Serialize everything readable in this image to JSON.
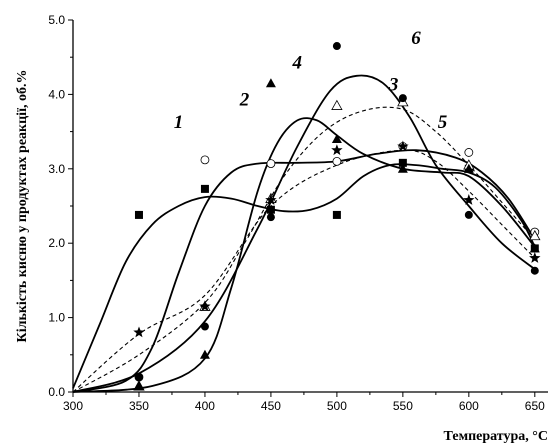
{
  "chart_data": {
    "type": "scatter",
    "title": "",
    "xlabel": "Температура, °С",
    "ylabel": "Кількість кисню у продуктах реакції, об.%",
    "xlim": [
      300,
      660
    ],
    "ylim": [
      0,
      5.0
    ],
    "x_ticks": [
      300,
      350,
      400,
      450,
      500,
      550,
      600,
      650
    ],
    "y_ticks": [
      0.0,
      1.0,
      2.0,
      3.0,
      4.0,
      5.0
    ],
    "x_tick_labels": [
      "300",
      "350",
      "400",
      "450",
      "500",
      "550",
      "600",
      "650"
    ],
    "y_tick_labels": [
      "0.0",
      "1.0",
      "2.0",
      "3.0",
      "4.0",
      "5.0"
    ],
    "grid": false,
    "legend": "none",
    "series": [
      {
        "name": "1",
        "marker": "square-filled",
        "line": "solid",
        "points": [
          [
            300,
            0
          ],
          [
            350,
            2.38
          ],
          [
            400,
            2.73
          ],
          [
            450,
            2.45
          ],
          [
            500,
            2.38
          ],
          [
            550,
            3.08
          ],
          [
            600,
            3.0
          ],
          [
            650,
            1.93
          ]
        ],
        "curve": [
          [
            300,
            0.05
          ],
          [
            320,
            0.9
          ],
          [
            340,
            1.75
          ],
          [
            360,
            2.25
          ],
          [
            380,
            2.5
          ],
          [
            400,
            2.62
          ],
          [
            420,
            2.6
          ],
          [
            440,
            2.5
          ],
          [
            460,
            2.43
          ],
          [
            480,
            2.45
          ],
          [
            500,
            2.6
          ],
          [
            520,
            2.9
          ],
          [
            540,
            3.05
          ],
          [
            560,
            3.05
          ],
          [
            580,
            3.0
          ],
          [
            600,
            2.95
          ],
          [
            620,
            2.75
          ],
          [
            640,
            2.3
          ],
          [
            650,
            1.95
          ]
        ]
      },
      {
        "name": "2",
        "marker": "circle-open",
        "line": "solid",
        "points": [
          [
            300,
            0
          ],
          [
            350,
            0.2
          ],
          [
            400,
            3.12
          ],
          [
            450,
            3.07
          ],
          [
            500,
            3.1
          ],
          [
            550,
            3.3
          ],
          [
            600,
            3.22
          ],
          [
            650,
            2.15
          ]
        ],
        "curve": [
          [
            300,
            0
          ],
          [
            340,
            0.15
          ],
          [
            360,
            0.6
          ],
          [
            380,
            1.6
          ],
          [
            400,
            2.5
          ],
          [
            420,
            2.95
          ],
          [
            440,
            3.07
          ],
          [
            470,
            3.08
          ],
          [
            500,
            3.1
          ],
          [
            530,
            3.2
          ],
          [
            560,
            3.25
          ],
          [
            590,
            3.15
          ],
          [
            610,
            2.95
          ],
          [
            630,
            2.6
          ],
          [
            650,
            2.05
          ]
        ]
      },
      {
        "name": "3",
        "marker": "triangle-open",
        "line": "dashed",
        "points": [
          [
            300,
            0
          ],
          [
            350,
            0.08
          ],
          [
            400,
            1.15
          ],
          [
            450,
            2.6
          ],
          [
            500,
            3.85
          ],
          [
            550,
            3.9
          ],
          [
            600,
            3.05
          ],
          [
            650,
            2.1
          ]
        ],
        "curve": [
          [
            300,
            0
          ],
          [
            350,
            0.5
          ],
          [
            400,
            1.2
          ],
          [
            430,
            2.0
          ],
          [
            460,
            2.9
          ],
          [
            490,
            3.5
          ],
          [
            520,
            3.78
          ],
          [
            550,
            3.8
          ],
          [
            575,
            3.5
          ],
          [
            600,
            3.05
          ],
          [
            625,
            2.55
          ],
          [
            650,
            2.05
          ]
        ]
      },
      {
        "name": "4",
        "marker": "triangle-filled",
        "line": "solid",
        "points": [
          [
            300,
            0
          ],
          [
            350,
            0.08
          ],
          [
            400,
            0.5
          ],
          [
            450,
            4.15
          ],
          [
            500,
            3.4
          ],
          [
            550,
            3.0
          ],
          [
            600,
            3.0
          ],
          [
            650,
            1.93
          ]
        ],
        "curve": [
          [
            300,
            0
          ],
          [
            360,
            0.08
          ],
          [
            400,
            0.45
          ],
          [
            420,
            1.4
          ],
          [
            440,
            2.7
          ],
          [
            455,
            3.35
          ],
          [
            470,
            3.65
          ],
          [
            485,
            3.65
          ],
          [
            500,
            3.45
          ],
          [
            520,
            3.2
          ],
          [
            550,
            3.0
          ],
          [
            580,
            2.95
          ],
          [
            600,
            2.9
          ],
          [
            625,
            2.5
          ],
          [
            650,
            1.95
          ]
        ]
      },
      {
        "name": "5",
        "marker": "star-filled",
        "line": "dashed",
        "points": [
          [
            300,
            0
          ],
          [
            350,
            0.8
          ],
          [
            400,
            1.15
          ],
          [
            450,
            2.58
          ],
          [
            500,
            3.25
          ],
          [
            550,
            3.3
          ],
          [
            600,
            2.58
          ],
          [
            650,
            1.8
          ]
        ],
        "curve": [
          [
            300,
            0
          ],
          [
            350,
            0.78
          ],
          [
            400,
            1.3
          ],
          [
            450,
            2.5
          ],
          [
            500,
            3.05
          ],
          [
            550,
            3.25
          ],
          [
            575,
            3.1
          ],
          [
            600,
            2.7
          ],
          [
            625,
            2.25
          ],
          [
            650,
            1.8
          ]
        ]
      },
      {
        "name": "6",
        "marker": "circle-filled",
        "line": "solid",
        "points": [
          [
            300,
            0
          ],
          [
            350,
            0.2
          ],
          [
            400,
            0.88
          ],
          [
            450,
            2.35
          ],
          [
            500,
            4.65
          ],
          [
            550,
            3.95
          ],
          [
            600,
            2.38
          ],
          [
            650,
            1.63
          ]
        ],
        "curve": [
          [
            300,
            0
          ],
          [
            350,
            0.25
          ],
          [
            400,
            0.95
          ],
          [
            440,
            2.2
          ],
          [
            470,
            3.3
          ],
          [
            495,
            4.05
          ],
          [
            515,
            4.25
          ],
          [
            535,
            4.15
          ],
          [
            555,
            3.7
          ],
          [
            575,
            3.05
          ],
          [
            600,
            2.5
          ],
          [
            625,
            2.0
          ],
          [
            650,
            1.65
          ]
        ]
      }
    ],
    "curve_labels": [
      {
        "text": "1",
        "x": 380,
        "y": 3.55
      },
      {
        "text": "2",
        "x": 430,
        "y": 3.85
      },
      {
        "text": "3",
        "x": 543,
        "y": 4.05
      },
      {
        "text": "4",
        "x": 470,
        "y": 4.35
      },
      {
        "text": "5",
        "x": 580,
        "y": 3.55
      },
      {
        "text": "6",
        "x": 560,
        "y": 4.68
      }
    ]
  }
}
